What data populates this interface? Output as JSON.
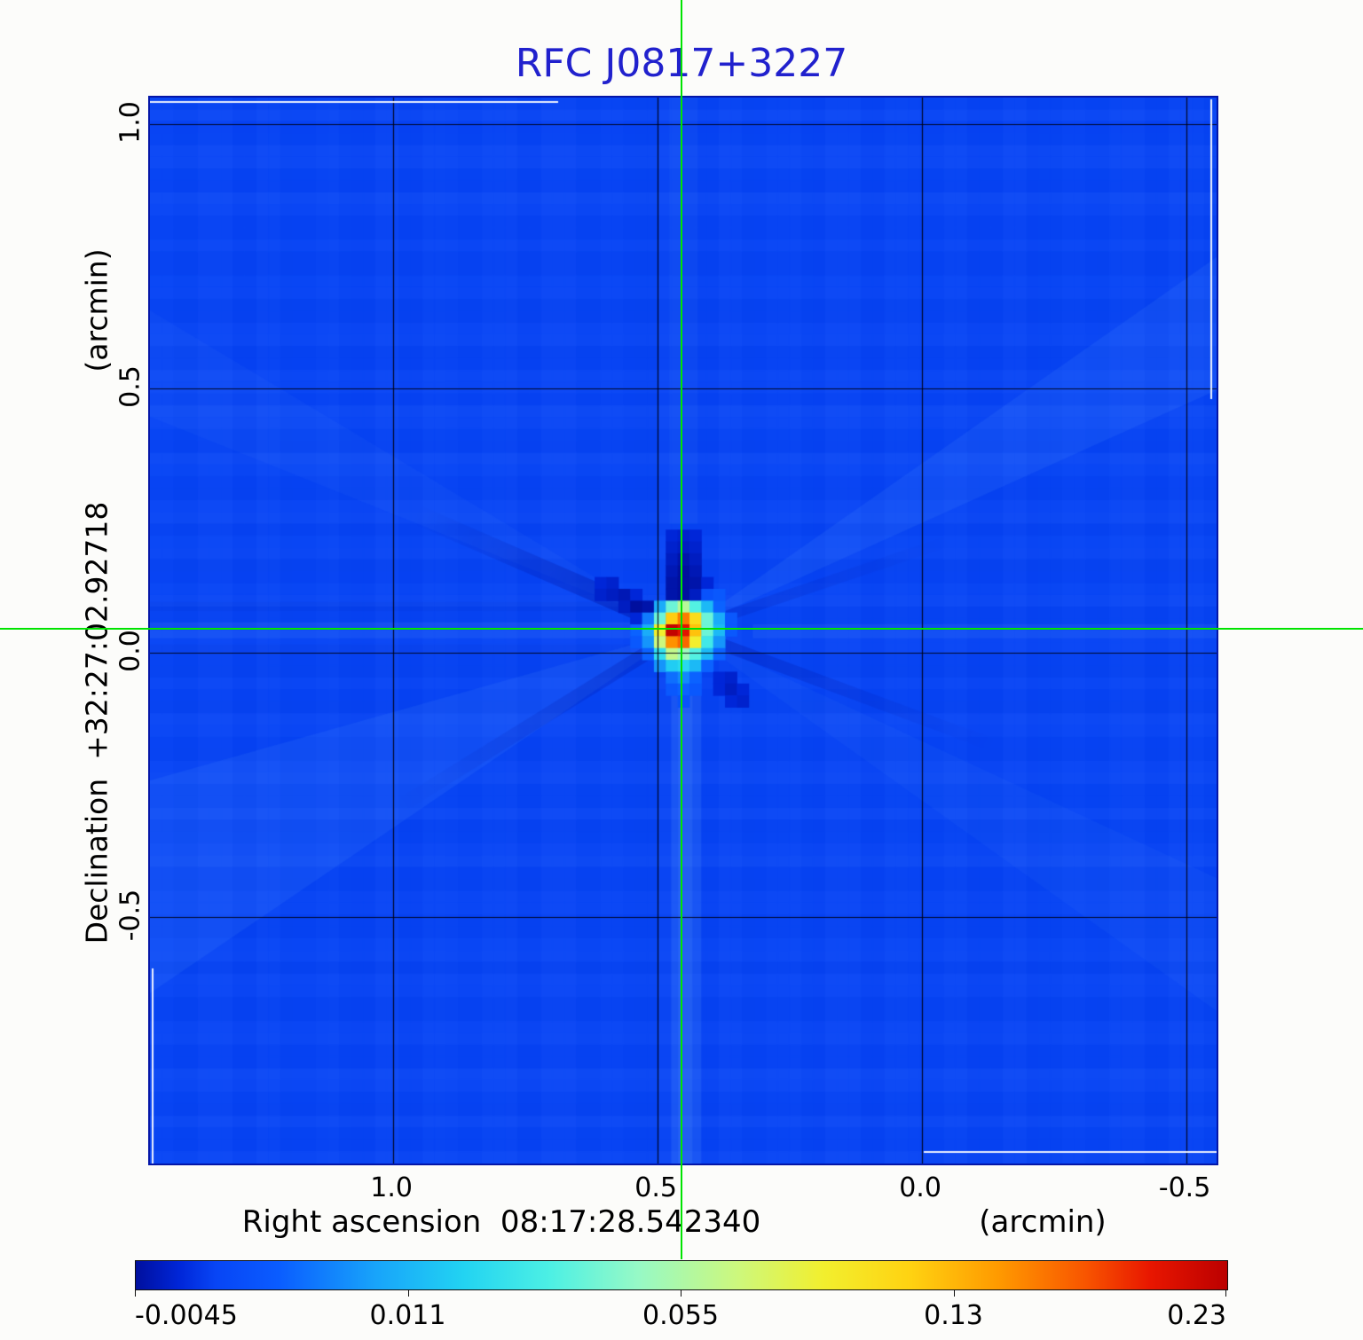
{
  "title": {
    "text": "RFC J0817+3227"
  },
  "colors": {
    "title_blue": "#2121cd",
    "crosshair_green": "#00e400",
    "map_base_blue": "#0845f5",
    "text_black": "#000000",
    "gridline": "rgba(0,0,15,0.9)"
  },
  "y_axis": {
    "unit": "(arcmin)",
    "name": "Declination  +32:27:02.92718",
    "tick_labels": [
      "1.0",
      "0.5",
      "0.0",
      "-0.5"
    ]
  },
  "x_axis": {
    "unit": "(arcmin)",
    "name": "Right ascension  08:17:28.542340",
    "tick_labels": [
      "1.0",
      "0.5",
      "0.0",
      "-0.5"
    ]
  },
  "colorbar": {
    "tick_labels": [
      "-0.0045",
      "0.011",
      "0.055",
      "0.13",
      "0.23"
    ]
  },
  "chart_data": {
    "type": "heatmap",
    "title": "RFC J0817+3227",
    "xlabel": "Right ascension  08:17:28.542340  (arcmin)",
    "ylabel": "Declination  +32:27:02.92718  (arcmin)",
    "x_ticks": [
      1.0,
      0.5,
      0.0,
      -0.5
    ],
    "y_ticks": [
      1.0,
      0.5,
      0.0,
      -0.5
    ],
    "x_range": [
      1.46,
      -0.557
    ],
    "y_range": [
      1.05,
      -0.967
    ],
    "grid": true,
    "colorbar_ticks": [
      -0.0045,
      0.011,
      0.055,
      0.13,
      0.23
    ],
    "value_anchor_fractions": [
      0.0,
      0.25,
      0.5,
      0.75,
      1.0
    ],
    "colormap_stops": [
      [
        0.0,
        "#000f9e"
      ],
      [
        0.04,
        "#0026d8"
      ],
      [
        0.073,
        "#0845f5"
      ],
      [
        0.13,
        "#0a5cff"
      ],
      [
        0.22,
        "#18a4fa"
      ],
      [
        0.3,
        "#22d3f2"
      ],
      [
        0.38,
        "#4df0e4"
      ],
      [
        0.46,
        "#96f9c6"
      ],
      [
        0.55,
        "#ccf87e"
      ],
      [
        0.63,
        "#f2ef2e"
      ],
      [
        0.71,
        "#ffd211"
      ],
      [
        0.79,
        "#ff9a00"
      ],
      [
        0.87,
        "#f85500"
      ],
      [
        0.93,
        "#e81600"
      ],
      [
        1.0,
        "#bb0000"
      ]
    ],
    "source": {
      "ra_offset_arcmin": 0.451,
      "dec_offset_arcmin": 0.042,
      "peak_value": 0.23,
      "cell_arcmin": 0.0224
    },
    "source_patch": {
      "center_cell": [
        7,
        8
      ],
      "values": [
        [
          0,
          0,
          0,
          0,
          0,
          0,
          -0.002,
          -0.0025,
          -0.002,
          0,
          0,
          0,
          0,
          0,
          0
        ],
        [
          0,
          0,
          0,
          0,
          0,
          0,
          -0.0025,
          -0.003,
          -0.0025,
          0,
          0,
          0,
          0,
          0,
          0
        ],
        [
          0,
          0,
          0,
          0,
          0,
          0,
          -0.003,
          -0.004,
          -0.003,
          0,
          0,
          0,
          0,
          0,
          0
        ],
        [
          0,
          0,
          0,
          0,
          0,
          0,
          -0.0035,
          -0.0045,
          -0.0035,
          0,
          0,
          0,
          0,
          0,
          0
        ],
        [
          -0.002,
          -0.0025,
          0,
          0,
          0,
          0,
          -0.004,
          -0.0045,
          -0.004,
          -0.002,
          0,
          0,
          0,
          0,
          0
        ],
        [
          -0.0025,
          -0.003,
          -0.0035,
          -0.002,
          0,
          0,
          -0.004,
          -0.0045,
          -0.003,
          0.002,
          0.003,
          0,
          0,
          0,
          0
        ],
        [
          0,
          0,
          -0.003,
          -0.0045,
          -0.004,
          0.01,
          0.04,
          0.06,
          0.035,
          0.012,
          0.004,
          0,
          0,
          0,
          0
        ],
        [
          0,
          0,
          0,
          -0.002,
          0.006,
          0.04,
          0.12,
          0.16,
          0.11,
          0.04,
          0.01,
          0.003,
          0,
          0,
          0
        ],
        [
          0,
          0,
          0,
          0.004,
          0.01,
          0.095,
          0.225,
          0.205,
          0.125,
          0.04,
          0.012,
          0.003,
          0,
          0,
          0
        ],
        [
          0,
          0,
          0,
          0.003,
          0.008,
          0.07,
          0.15,
          0.17,
          0.095,
          0.03,
          0.008,
          0,
          0,
          0,
          0
        ],
        [
          0,
          0,
          0,
          0,
          0.004,
          0.025,
          0.065,
          0.05,
          0.035,
          0.012,
          0.004,
          0,
          0,
          0,
          0
        ],
        [
          0,
          0,
          0,
          0,
          0,
          0.008,
          0.018,
          0.022,
          0.012,
          0.004,
          0,
          0,
          0,
          0,
          0
        ],
        [
          0,
          0,
          0,
          0,
          0,
          0,
          0.005,
          0.007,
          0.004,
          0,
          -0.002,
          -0.0025,
          0,
          0,
          0
        ],
        [
          0,
          0,
          0,
          0,
          0,
          0,
          0.003,
          0.004,
          0.003,
          0,
          -0.002,
          -0.003,
          -0.002,
          0,
          0
        ],
        [
          0,
          0,
          0,
          0,
          0,
          0,
          0,
          0.002,
          0,
          0,
          0,
          -0.002,
          -0.0025,
          0,
          0
        ],
        [
          0,
          0,
          0,
          0,
          0,
          0,
          0,
          0,
          0,
          0,
          0,
          0,
          0,
          0,
          0
        ],
        [
          0,
          0,
          0,
          0,
          0,
          0,
          0,
          0,
          0,
          0,
          0,
          0,
          0,
          0,
          0
        ]
      ]
    }
  }
}
